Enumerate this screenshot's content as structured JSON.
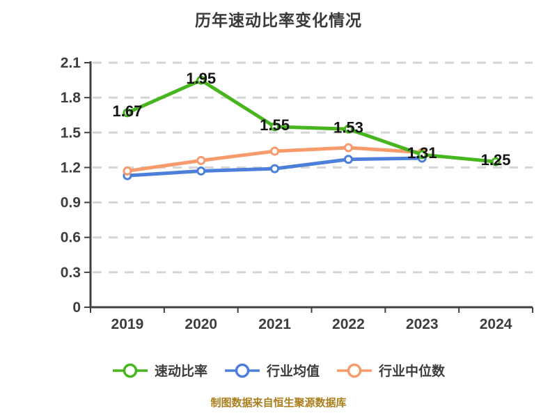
{
  "title": "历年速动比率变化情况",
  "footer_note": "制图数据来自恒生聚源数据库",
  "colors": {
    "title": "#3a3a3a",
    "axis": "#404040",
    "tick_label": "#3d3d3d",
    "grid": "#d5d5d5",
    "data_label": "#141414",
    "legend_label": "#3d3d3d",
    "footer": "#aa7e1d",
    "background": "#ffffff"
  },
  "chart_data": {
    "type": "line",
    "title": "历年速动比率变化情况",
    "categories": [
      "2019",
      "2020",
      "2021",
      "2022",
      "2023",
      "2024"
    ],
    "series": [
      {
        "name": "速动比率",
        "color": "#46b51e",
        "values": [
          1.67,
          1.95,
          1.55,
          1.53,
          1.31,
          1.25
        ],
        "data_labels": true
      },
      {
        "name": "行业均值",
        "color": "#4c7fd9",
        "values": [
          1.13,
          1.17,
          1.19,
          1.27,
          1.28,
          null
        ],
        "data_labels": false
      },
      {
        "name": "行业中位数",
        "color": "#f79b6d",
        "values": [
          1.17,
          1.26,
          1.34,
          1.37,
          1.33,
          null
        ],
        "data_labels": false
      }
    ],
    "ylim": [
      0,
      2.1
    ],
    "yticks": [
      0,
      0.3,
      0.6,
      0.9,
      1.2,
      1.5,
      1.8,
      2.1
    ],
    "grid": "horizontal-dashed",
    "legend_position": "bottom",
    "marker": "circle-white-fill",
    "annotation": "industry series (行业均值/行业中位数) have no 2024 value"
  }
}
